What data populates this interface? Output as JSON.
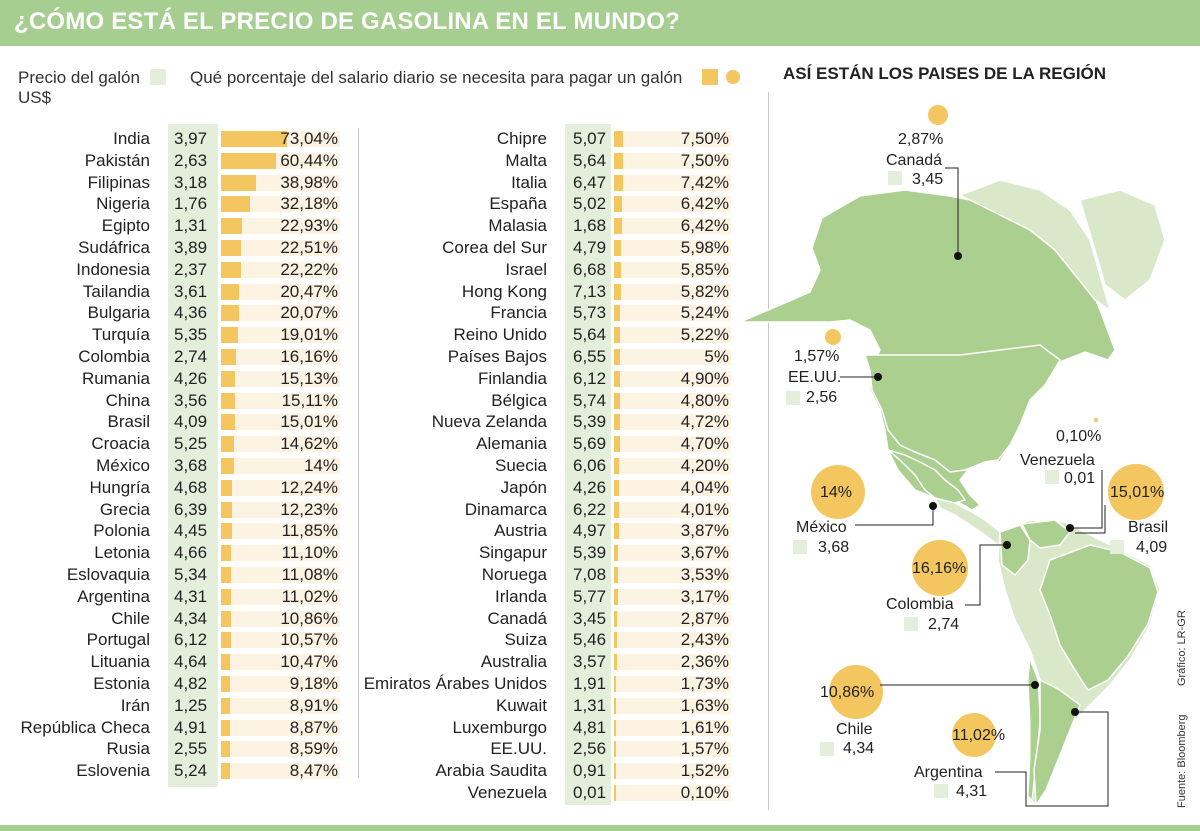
{
  "title": "¿CÓMO ESTÁ EL PRECIO DE GASOLINA EN EL MUNDO?",
  "legend": {
    "price_label_line1": "Precio del galón",
    "price_label_line2": "US$",
    "pct_label": "Qué porcentaje del salario diario se necesita para pagar un galón"
  },
  "colors": {
    "header": "#a6ce90",
    "bar": "#f3c65f",
    "bar_bg": "#fdf3e3",
    "price_bg": "#e3efda",
    "map_land": "#aacf8f",
    "map_light": "#d8e8c8"
  },
  "region": {
    "title": "ASÍ ESTÁN LOS PAISES DE LA REGIÓN",
    "countries": [
      {
        "name": "Canadá",
        "pct": "2,87%",
        "price": "3,45"
      },
      {
        "name": "EE.UU.",
        "pct": "1,57%",
        "price": "2,56"
      },
      {
        "name": "Venezuela",
        "pct": "0,10%",
        "price": "0,01"
      },
      {
        "name": "México",
        "pct": "14%",
        "price": "3,68"
      },
      {
        "name": "Brasil",
        "pct": "15,01%",
        "price": "4,09"
      },
      {
        "name": "Colombia",
        "pct": "16,16%",
        "price": "2,74"
      },
      {
        "name": "Chile",
        "pct": "10,86%",
        "price": "4,34"
      },
      {
        "name": "Argentina",
        "pct": "11,02%",
        "price": "4,31"
      }
    ]
  },
  "credits": {
    "grafico": "Gráfico: LR-GR",
    "fuente": "Fuente: Bloomberg"
  },
  "chart_data": {
    "type": "bar",
    "title": "¿CÓMO ESTÁ EL PRECIO DE GASOLINA EN EL MUNDO?",
    "xlabel": "Qué porcentaje del salario diario se necesita para pagar un galón",
    "ylabel": "",
    "xlim": [
      0,
      73.04
    ],
    "columns": [
      {
        "rows": [
          {
            "country": "India",
            "price": "3,97",
            "pct_label": "73,04%",
            "pct": 73.04
          },
          {
            "country": "Pakistán",
            "price": "2,63",
            "pct_label": "60,44%",
            "pct": 60.44
          },
          {
            "country": "Filipinas",
            "price": "3,18",
            "pct_label": "38,98%",
            "pct": 38.98
          },
          {
            "country": "Nigeria",
            "price": "1,76",
            "pct_label": "32,18%",
            "pct": 32.18
          },
          {
            "country": "Egipto",
            "price": "1,31",
            "pct_label": "22,93%",
            "pct": 22.93
          },
          {
            "country": "Sudáfrica",
            "price": "3,89",
            "pct_label": "22,51%",
            "pct": 22.51
          },
          {
            "country": "Indonesia",
            "price": "2,37",
            "pct_label": "22,22%",
            "pct": 22.22
          },
          {
            "country": "Tailandia",
            "price": "3,61",
            "pct_label": "20,47%",
            "pct": 20.47
          },
          {
            "country": "Bulgaria",
            "price": "4,36",
            "pct_label": "20,07%",
            "pct": 20.07
          },
          {
            "country": "Turquía",
            "price": "5,35",
            "pct_label": "19,01%",
            "pct": 19.01
          },
          {
            "country": "Colombia",
            "price": "2,74",
            "pct_label": "16,16%",
            "pct": 16.16
          },
          {
            "country": "Rumania",
            "price": "4,26",
            "pct_label": "15,13%",
            "pct": 15.13
          },
          {
            "country": "China",
            "price": "3,56",
            "pct_label": "15,11%",
            "pct": 15.11
          },
          {
            "country": "Brasil",
            "price": "4,09",
            "pct_label": "15,01%",
            "pct": 15.01
          },
          {
            "country": "Croacia",
            "price": "5,25",
            "pct_label": "14,62%",
            "pct": 14.62
          },
          {
            "country": "México",
            "price": "3,68",
            "pct_label": "14%",
            "pct": 14
          },
          {
            "country": "Hungría",
            "price": "4,68",
            "pct_label": "12,24%",
            "pct": 12.24
          },
          {
            "country": "Grecia",
            "price": "6,39",
            "pct_label": "12,23%",
            "pct": 12.23
          },
          {
            "country": "Polonia",
            "price": "4,45",
            "pct_label": "11,85%",
            "pct": 11.85
          },
          {
            "country": "Letonia",
            "price": "4,66",
            "pct_label": "11,10%",
            "pct": 11.1
          },
          {
            "country": "Eslovaquia",
            "price": "5,34",
            "pct_label": "11,08%",
            "pct": 11.08
          },
          {
            "country": "Argentina",
            "price": "4,31",
            "pct_label": "11,02%",
            "pct": 11.02
          },
          {
            "country": "Chile",
            "price": "4,34",
            "pct_label": "10,86%",
            "pct": 10.86
          },
          {
            "country": "Portugal",
            "price": "6,12",
            "pct_label": "10,57%",
            "pct": 10.57
          },
          {
            "country": "Lituania",
            "price": "4,64",
            "pct_label": "10,47%",
            "pct": 10.47
          },
          {
            "country": "Estonia",
            "price": "4,82",
            "pct_label": "9,18%",
            "pct": 9.18
          },
          {
            "country": "Irán",
            "price": "1,25",
            "pct_label": "8,91%",
            "pct": 8.91
          },
          {
            "country": "República Checa",
            "price": "4,91",
            "pct_label": "8,87%",
            "pct": 8.87
          },
          {
            "country": "Rusia",
            "price": "2,55",
            "pct_label": "8,59%",
            "pct": 8.59
          },
          {
            "country": "Eslovenia",
            "price": "5,24",
            "pct_label": "8,47%",
            "pct": 8.47
          }
        ]
      },
      {
        "rows": [
          {
            "country": "Chipre",
            "price": "5,07",
            "pct_label": "7,50%",
            "pct": 7.5
          },
          {
            "country": "Malta",
            "price": "5,64",
            "pct_label": "7,50%",
            "pct": 7.5
          },
          {
            "country": "Italia",
            "price": "6,47",
            "pct_label": "7,42%",
            "pct": 7.42
          },
          {
            "country": "España",
            "price": "5,02",
            "pct_label": "6,42%",
            "pct": 6.42
          },
          {
            "country": "Malasia",
            "price": "1,68",
            "pct_label": "6,42%",
            "pct": 6.42
          },
          {
            "country": "Corea del Sur",
            "price": "4,79",
            "pct_label": "5,98%",
            "pct": 5.98
          },
          {
            "country": "Israel",
            "price": "6,68",
            "pct_label": "5,85%",
            "pct": 5.85
          },
          {
            "country": "Hong Kong",
            "price": "7,13",
            "pct_label": "5,82%",
            "pct": 5.82
          },
          {
            "country": "Francia",
            "price": "5,73",
            "pct_label": "5,24%",
            "pct": 5.24
          },
          {
            "country": "Reino Unido",
            "price": "5,64",
            "pct_label": "5,22%",
            "pct": 5.22
          },
          {
            "country": "Países Bajos",
            "price": "6,55",
            "pct_label": "5%",
            "pct": 5
          },
          {
            "country": "Finlandia",
            "price": "6,12",
            "pct_label": "4,90%",
            "pct": 4.9
          },
          {
            "country": "Bélgica",
            "price": "5,74",
            "pct_label": "4,80%",
            "pct": 4.8
          },
          {
            "country": "Nueva Zelanda",
            "price": "5,39",
            "pct_label": "4,72%",
            "pct": 4.72
          },
          {
            "country": "Alemania",
            "price": "5,69",
            "pct_label": "4,70%",
            "pct": 4.7
          },
          {
            "country": "Suecia",
            "price": "6,06",
            "pct_label": "4,20%",
            "pct": 4.2
          },
          {
            "country": "Japón",
            "price": "4,26",
            "pct_label": "4,04%",
            "pct": 4.04
          },
          {
            "country": "Dinamarca",
            "price": "6,22",
            "pct_label": "4,01%",
            "pct": 4.01
          },
          {
            "country": "Austria",
            "price": "4,97",
            "pct_label": "3,87%",
            "pct": 3.87
          },
          {
            "country": "Singapur",
            "price": "5,39",
            "pct_label": "3,67%",
            "pct": 3.67
          },
          {
            "country": "Noruega",
            "price": "7,08",
            "pct_label": "3,53%",
            "pct": 3.53
          },
          {
            "country": "Irlanda",
            "price": "5,77",
            "pct_label": "3,17%",
            "pct": 3.17
          },
          {
            "country": "Canadá",
            "price": "3,45",
            "pct_label": "2,87%",
            "pct": 2.87
          },
          {
            "country": "Suiza",
            "price": "5,46",
            "pct_label": "2,43%",
            "pct": 2.43
          },
          {
            "country": "Australia",
            "price": "3,57",
            "pct_label": "2,36%",
            "pct": 2.36
          },
          {
            "country": "Emiratos Árabes Unidos",
            "price": "1,91",
            "pct_label": "1,73%",
            "pct": 1.73
          },
          {
            "country": "Kuwait",
            "price": "1,31",
            "pct_label": "1,63%",
            "pct": 1.63
          },
          {
            "country": "Luxemburgo",
            "price": "4,81",
            "pct_label": "1,61%",
            "pct": 1.61
          },
          {
            "country": "EE.UU.",
            "price": "2,56",
            "pct_label": "1,57%",
            "pct": 1.57
          },
          {
            "country": "Arabia Saudita",
            "price": "0,91",
            "pct_label": "1,52%",
            "pct": 1.52
          },
          {
            "country": "Venezuela",
            "price": "0,01",
            "pct_label": "0,10%",
            "pct": 0.1
          }
        ]
      }
    ]
  }
}
